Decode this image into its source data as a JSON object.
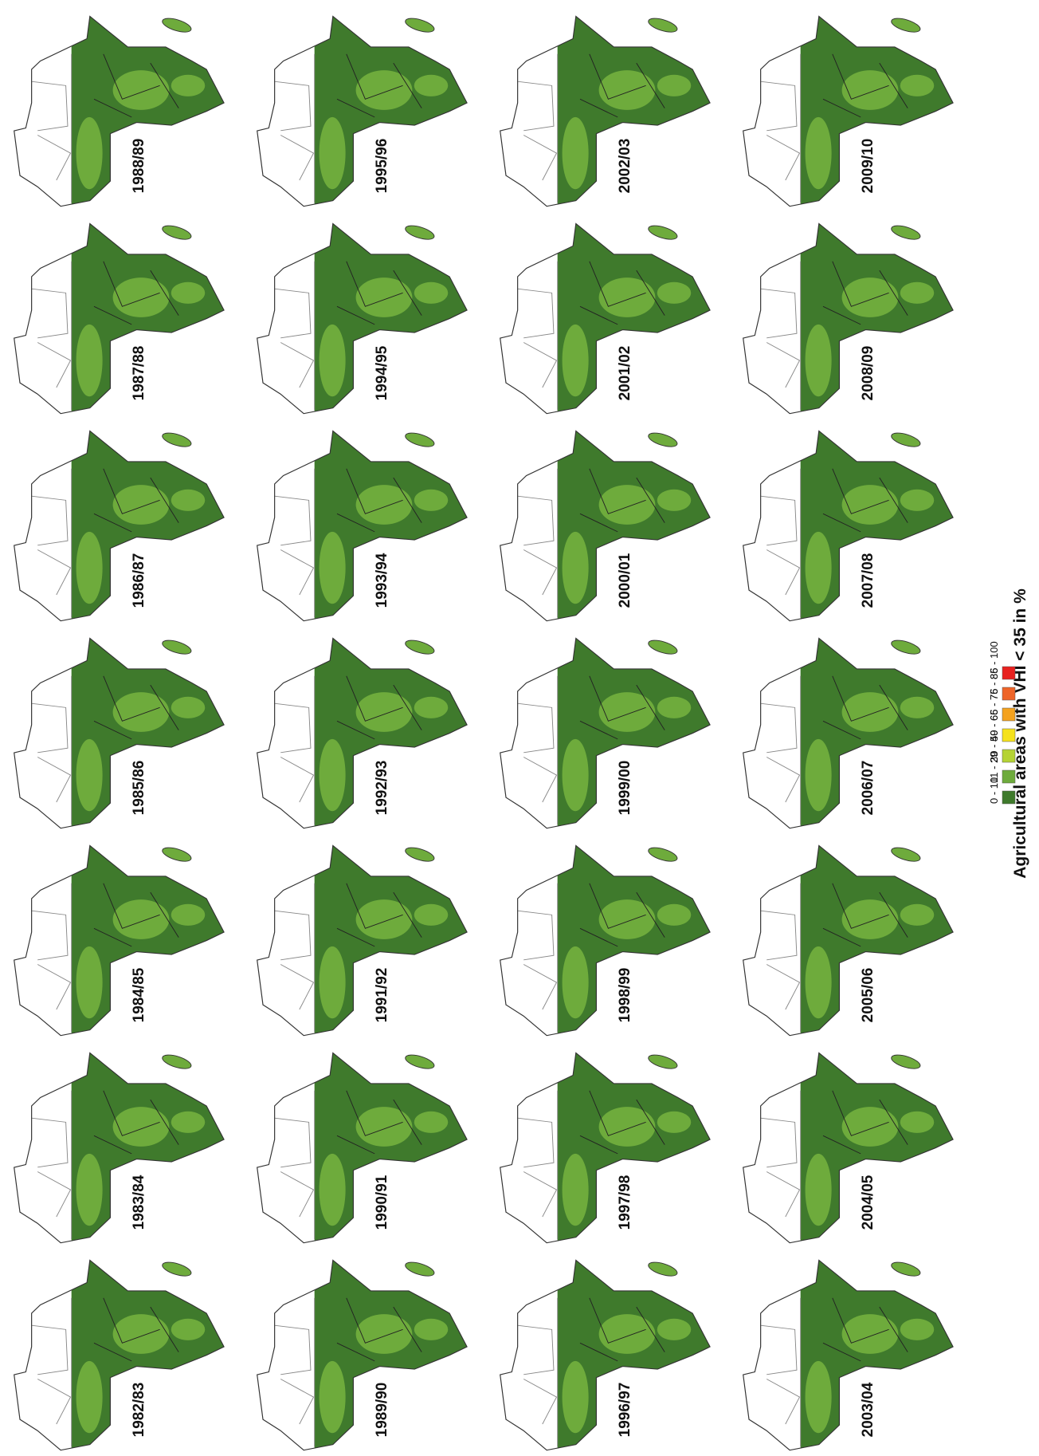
{
  "panels": [
    "1988/89",
    "1987/88",
    "1986/87",
    "1985/86",
    "1984/85",
    "1983/84",
    "1982/83",
    "1995/96",
    "1994/95",
    "1993/94",
    "1992/93",
    "1991/92",
    "1990/91",
    "1989/90",
    "2002/03",
    "2001/02",
    "2000/01",
    "1999/00",
    "1998/99",
    "1997/98",
    "1996/97",
    "2009/10",
    "2008/09",
    "2007/08",
    "2006/07",
    "2005/06",
    "2004/05",
    "2003/04"
  ],
  "legend": {
    "title": "Agricultural areas with VHI < 35 in %",
    "items": [
      {
        "label": "0 - 10",
        "color": "#3f7a2c"
      },
      {
        "label": "11 - 29",
        "color": "#6eab3c"
      },
      {
        "label": "30 - 49",
        "color": "#b5d334"
      },
      {
        "label": "50 - 65",
        "color": "#f5e21c"
      },
      {
        "label": "66 - 75",
        "color": "#f4a21e"
      },
      {
        "label": "76 - 85",
        "color": "#ee6428"
      },
      {
        "label": "86 - 100",
        "color": "#e8211f"
      }
    ]
  }
}
